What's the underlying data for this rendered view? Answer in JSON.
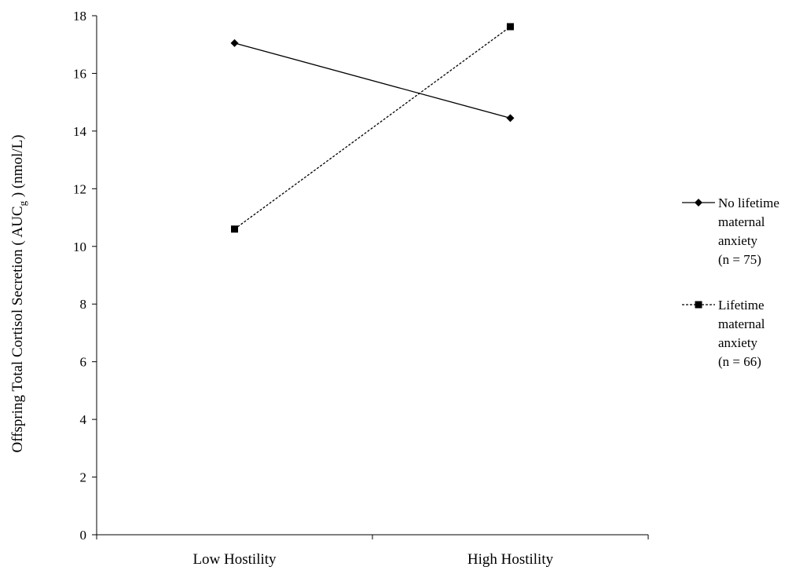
{
  "chart_data": {
    "type": "line",
    "categories": [
      "Low Hostility",
      "High Hostility"
    ],
    "ylabel": {
      "prefix": "Offspring Total Cortisol Secretion ( AUC",
      "subscript": "g",
      "suffix": " ) (nmol/L)"
    },
    "ylim": [
      0,
      18
    ],
    "yticks": [
      0,
      2,
      4,
      6,
      8,
      10,
      12,
      14,
      16,
      18
    ],
    "grid": false,
    "legend_position": "right",
    "series": [
      {
        "name": "No lifetime maternal anxiety (n = 75)",
        "legend_lines": [
          "No lifetime",
          "maternal",
          "anxiety",
          "(n = 75)"
        ],
        "values": [
          17.05,
          14.45
        ],
        "marker": "diamond",
        "line_style": "solid",
        "color": "#000000"
      },
      {
        "name": "Lifetime maternal anxiety (n = 66)",
        "legend_lines": [
          "Lifetime",
          "maternal",
          "anxiety",
          "(n = 66)"
        ],
        "values": [
          10.6,
          17.62
        ],
        "marker": "square",
        "line_style": "dashed",
        "color": "#000000"
      }
    ]
  }
}
